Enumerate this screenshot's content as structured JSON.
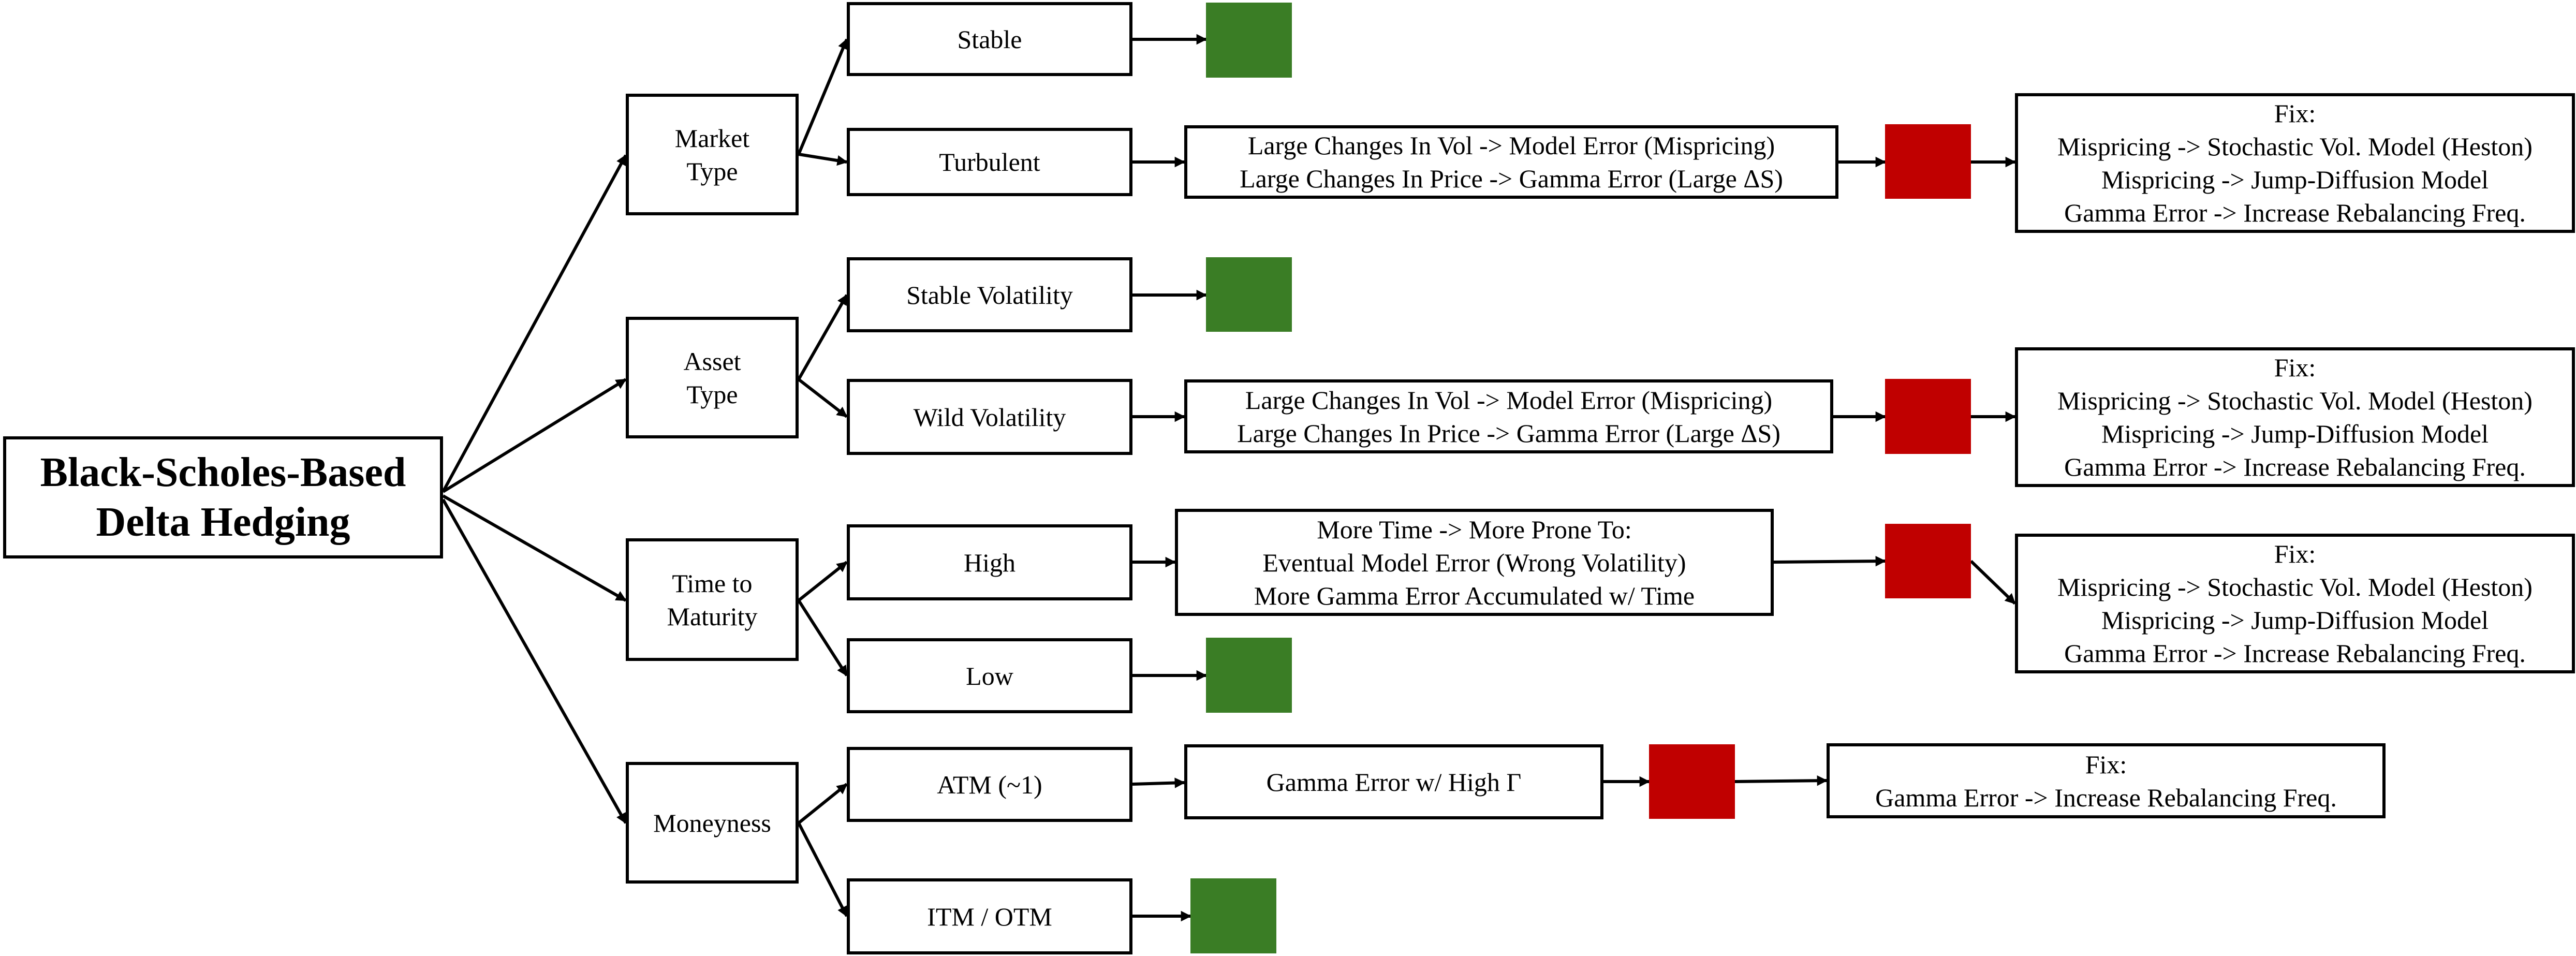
{
  "colors": {
    "ok": "#3a7d25",
    "bad": "#c00000",
    "line": "#000000"
  },
  "root": {
    "line1": "Black-Scholes-Based",
    "line2": "Delta Hedging"
  },
  "categories": {
    "market": {
      "line1": "Market",
      "line2": "Type"
    },
    "asset": {
      "line1": "Asset",
      "line2": "Type"
    },
    "time": {
      "line1": "Time to",
      "line2": "Maturity"
    },
    "money": {
      "line1": "Moneyness"
    }
  },
  "options": {
    "stable": "Stable",
    "turbulent": "Turbulent",
    "stable_vol": "Stable Volatility",
    "wild_vol": "Wild Volatility",
    "high": "High",
    "low": "Low",
    "atm": "ATM (~1)",
    "itm_otm": "ITM / OTM"
  },
  "effects": {
    "turbulent": [
      "Large Changes In Vol -> Model Error (Mispricing)",
      "Large Changes In Price -> Gamma Error (Large ΔS)"
    ],
    "wild_vol": [
      "Large Changes In Vol -> Model Error (Mispricing)",
      "Large Changes In Price  -> Gamma Error (Large ΔS)"
    ],
    "high": [
      "More Time -> More Prone To:",
      "Eventual Model Error (Wrong Volatility)",
      "More Gamma Error Accumulated w/ Time"
    ],
    "atm": [
      "Gamma Error w/ High Γ"
    ]
  },
  "fixes": {
    "market": [
      "Fix:",
      "Mispricing -> Stochastic Vol. Model (Heston)",
      "Mispricing -> Jump-Diffusion Model",
      "Gamma Error -> Increase Rebalancing Freq."
    ],
    "asset": [
      "Fix:",
      "Mispricing -> Stochastic Vol. Model (Heston)",
      "Mispricing -> Jump-Diffusion Model",
      "Gamma Error -> Increase Rebalancing Freq."
    ],
    "time": [
      "Fix:",
      "Mispricing -> Stochastic Vol. Model (Heston)",
      "Mispricing -> Jump-Diffusion Model",
      "Gamma Error -> Increase Rebalancing Freq."
    ],
    "money": [
      "Fix:",
      "Gamma Error -> Increase Rebalancing Freq."
    ]
  }
}
